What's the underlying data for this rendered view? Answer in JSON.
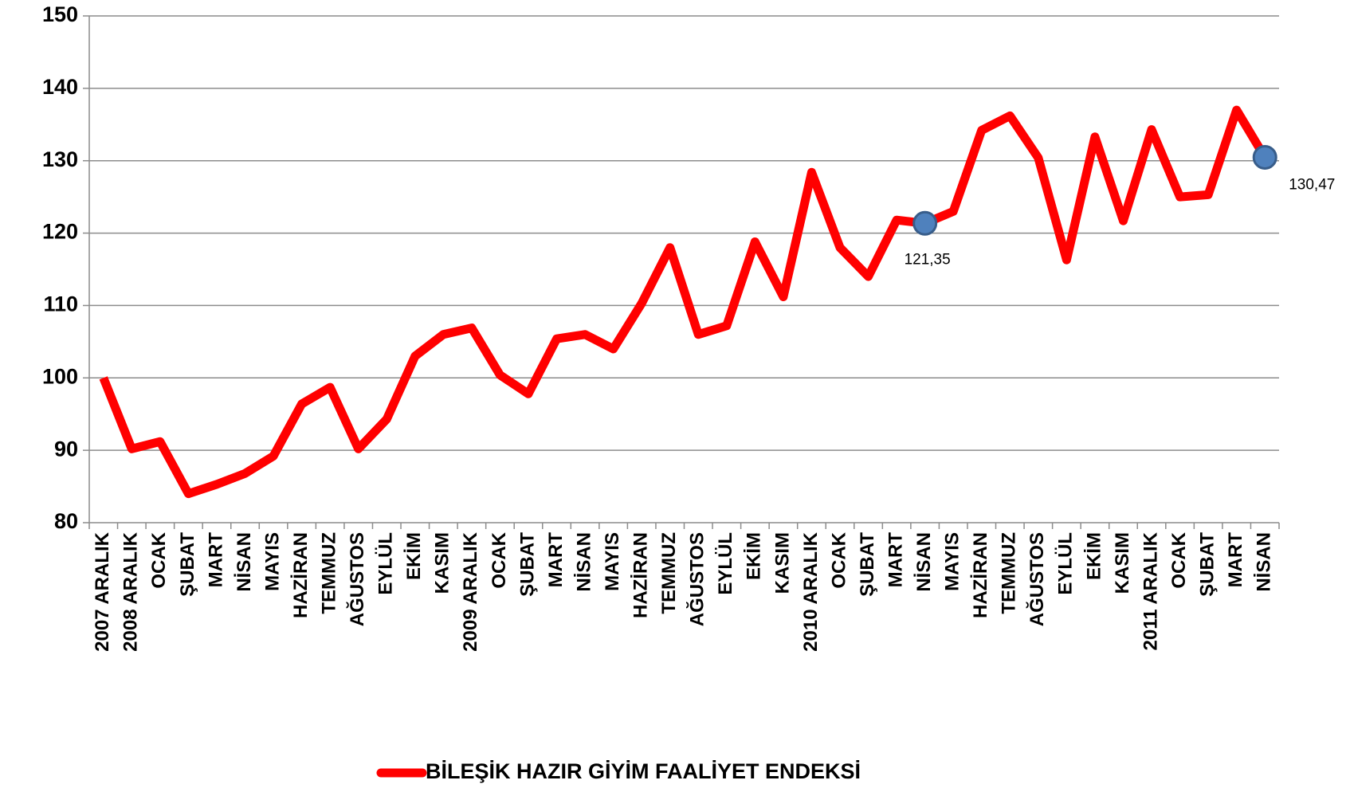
{
  "chart_data": {
    "type": "line",
    "categories": [
      "2007 ARALIK",
      "2008 ARALIK",
      "OCAK",
      "ŞUBAT",
      "MART",
      "NİSAN",
      "MAYIS",
      "HAZİRAN",
      "TEMMUZ",
      "AĞUSTOS",
      "EYLÜL",
      "EKİM",
      "KASIM",
      "2009 ARALIK",
      "OCAK",
      "ŞUBAT",
      "MART",
      "NİSAN",
      "MAYIS",
      "HAZİRAN",
      "TEMMUZ",
      "AĞUSTOS",
      "EYLÜL",
      "EKİM",
      "KASIM",
      "2010 ARALIK",
      "OCAK",
      "ŞUBAT",
      "MART",
      "NİSAN",
      "MAYIS",
      "HAZİRAN",
      "TEMMUZ",
      "AĞUSTOS",
      "EYLÜL",
      "EKİM",
      "KASIM",
      "2011 ARALIK",
      "OCAK",
      "ŞUBAT",
      "MART",
      "NİSAN"
    ],
    "series": [
      {
        "name": "BİLEŞİK HAZIR GİYİM FAALİYET ENDEKSİ",
        "color": "#ff0000",
        "marker_color": "#4f81bd",
        "values": [
          100,
          90.2,
          91.2,
          84,
          85.3,
          86.8,
          89.2,
          96.4,
          98.7,
          90.2,
          94.3,
          103,
          106,
          106.9,
          100.4,
          97.8,
          105.4,
          106,
          104,
          110.3,
          118,
          106,
          107.2,
          118.8,
          111.2,
          128.4,
          118,
          114,
          121.8,
          121.35,
          123,
          134.2,
          136.2,
          130.4,
          116.3,
          133.3,
          121.7,
          134.3,
          125,
          125.3,
          137,
          130.47
        ],
        "value_labels": [
          null,
          null,
          null,
          null,
          null,
          null,
          null,
          null,
          null,
          null,
          null,
          null,
          null,
          null,
          null,
          null,
          null,
          null,
          null,
          null,
          null,
          null,
          null,
          null,
          null,
          null,
          null,
          null,
          null,
          "121,35",
          null,
          null,
          null,
          null,
          null,
          null,
          null,
          null,
          null,
          null,
          null,
          "130,47"
        ]
      }
    ],
    "ylim": [
      80,
      150
    ],
    "yticks": [
      80,
      90,
      100,
      110,
      120,
      130,
      140,
      150
    ],
    "grid": true,
    "legend": "bottom"
  }
}
